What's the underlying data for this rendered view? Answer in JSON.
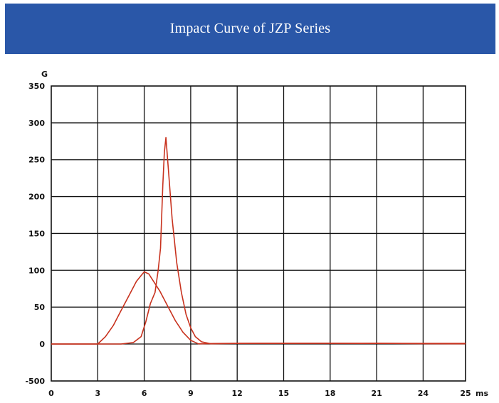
{
  "header": {
    "title": "Impact Curve of JZP Series"
  },
  "colors": {
    "banner": "#2a57a8",
    "curve": "#c8321e",
    "grid": "#111111"
  },
  "chart_data": {
    "type": "line",
    "title": "Impact Curve of JZP Series",
    "ylabel": "G",
    "xlabel": "ms",
    "x_ticks": [
      "0",
      "3",
      "6",
      "9",
      "12",
      "15",
      "18",
      "21",
      "24",
      "25"
    ],
    "y_ticks": [
      "-500",
      "0",
      "50",
      "100",
      "150",
      "200",
      "250",
      "300",
      "350"
    ],
    "grid": true,
    "note": "y axis compresses the range below 0 (bottom tick printed as -500)",
    "series": [
      {
        "points": [
          [
            0,
            0
          ],
          [
            3,
            0
          ],
          [
            3.5,
            10
          ],
          [
            4,
            25
          ],
          [
            4.5,
            45
          ],
          [
            5,
            65
          ],
          [
            5.5,
            85
          ],
          [
            6,
            98
          ],
          [
            6.3,
            95
          ],
          [
            6.6,
            85
          ],
          [
            7,
            72
          ],
          [
            7.5,
            52
          ],
          [
            8,
            32
          ],
          [
            8.5,
            16
          ],
          [
            9,
            5
          ],
          [
            9.5,
            -2
          ],
          [
            10.5,
            -7
          ],
          [
            12,
            -9
          ],
          [
            15,
            -10
          ],
          [
            18,
            -10
          ],
          [
            21,
            -9
          ],
          [
            24,
            -8
          ],
          [
            25,
            -8
          ]
        ]
      },
      {
        "points": [
          [
            0,
            0
          ],
          [
            4.5,
            0
          ],
          [
            5.3,
            2
          ],
          [
            5.8,
            10
          ],
          [
            6.1,
            30
          ],
          [
            6.4,
            55
          ],
          [
            6.7,
            70
          ],
          [
            6.9,
            100
          ],
          [
            7.05,
            130
          ],
          [
            7.2,
            215
          ],
          [
            7.3,
            260
          ],
          [
            7.4,
            280
          ],
          [
            7.55,
            240
          ],
          [
            7.8,
            170
          ],
          [
            8.1,
            110
          ],
          [
            8.4,
            70
          ],
          [
            8.7,
            40
          ],
          [
            9,
            22
          ],
          [
            9.3,
            10
          ],
          [
            9.7,
            3
          ],
          [
            10.3,
            -3
          ],
          [
            11,
            -6
          ],
          [
            12,
            -8
          ],
          [
            13.5,
            -10
          ],
          [
            15,
            -9
          ],
          [
            18,
            -10
          ],
          [
            20,
            -8
          ],
          [
            21,
            -9
          ],
          [
            22,
            -8
          ],
          [
            24,
            -4
          ],
          [
            25,
            -3
          ]
        ]
      }
    ]
  }
}
